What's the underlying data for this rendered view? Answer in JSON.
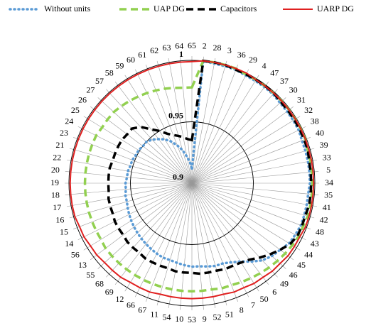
{
  "chart_data": {
    "type": "radar",
    "categories": [
      "65",
      "2",
      "28",
      "3",
      "36",
      "29",
      "4",
      "47",
      "37",
      "30",
      "31",
      "32",
      "38",
      "40",
      "39",
      "33",
      "5",
      "34",
      "35",
      "41",
      "42",
      "48",
      "43",
      "44",
      "45",
      "46",
      "49",
      "6",
      "50",
      "7",
      "8",
      "51",
      "52",
      "9",
      "53",
      "10",
      "54",
      "11",
      "67",
      "66",
      "12",
      "69",
      "68",
      "55",
      "13",
      "56",
      "14",
      "15",
      "16",
      "17",
      "18",
      "19",
      "20",
      "22",
      "21",
      "23",
      "24",
      "25",
      "26",
      "27",
      "57",
      "58",
      "59",
      "60",
      "61",
      "62",
      "63",
      "64"
    ],
    "rlim": [
      0.9,
      1.0
    ],
    "rticks": [
      0.9,
      0.95,
      1
    ],
    "grid": true,
    "legend": "top",
    "series": [
      {
        "name": "Without units",
        "color": "#5b9bd5",
        "dash": "dotted",
        "values": [
          0.912,
          1.0,
          0.999,
          0.999,
          0.999,
          0.998,
          0.998,
          0.998,
          0.998,
          0.997,
          0.997,
          0.997,
          0.997,
          0.996,
          0.996,
          0.996,
          0.996,
          0.996,
          0.995,
          0.995,
          0.995,
          0.995,
          0.994,
          0.993,
          0.99,
          0.988,
          0.985,
          0.98,
          0.975,
          0.972,
          0.97,
          0.97,
          0.969,
          0.968,
          0.968,
          0.967,
          0.966,
          0.965,
          0.965,
          0.964,
          0.963,
          0.962,
          0.961,
          0.96,
          0.959,
          0.958,
          0.957,
          0.956,
          0.955,
          0.955,
          0.954,
          0.954,
          0.953,
          0.953,
          0.952,
          0.952,
          0.951,
          0.951,
          0.95,
          0.95,
          0.948,
          0.945,
          0.942,
          0.938,
          0.933,
          0.928,
          0.922,
          0.917
        ]
      },
      {
        "name": "UAP DG",
        "color": "#92d050",
        "dash": "dashed",
        "values": [
          0.978,
          1.0,
          1.0,
          1.0,
          1.0,
          0.999,
          0.999,
          0.999,
          0.999,
          0.999,
          0.999,
          0.999,
          0.999,
          0.999,
          0.998,
          0.998,
          0.998,
          0.998,
          0.998,
          0.998,
          0.998,
          0.997,
          0.997,
          0.996,
          0.995,
          0.994,
          0.993,
          0.992,
          0.991,
          0.99,
          0.989,
          0.989,
          0.988,
          0.988,
          0.988,
          0.988,
          0.988,
          0.988,
          0.988,
          0.988,
          0.988,
          0.988,
          0.988,
          0.988,
          0.988,
          0.987,
          0.987,
          0.987,
          0.987,
          0.987,
          0.987,
          0.987,
          0.987,
          0.987,
          0.987,
          0.987,
          0.987,
          0.986,
          0.986,
          0.986,
          0.985,
          0.984,
          0.983,
          0.982,
          0.981,
          0.98,
          0.979,
          0.978
        ]
      },
      {
        "name": "Capacitors",
        "color": "#000000",
        "dash": "dashed",
        "values": [
          0.935,
          1.0,
          1.0,
          1.0,
          0.999,
          0.999,
          0.999,
          0.999,
          0.999,
          0.998,
          0.998,
          0.998,
          0.998,
          0.998,
          0.998,
          0.997,
          0.997,
          0.997,
          0.997,
          0.997,
          0.996,
          0.996,
          0.996,
          0.994,
          0.99,
          0.986,
          0.982,
          0.978,
          0.976,
          0.975,
          0.975,
          0.974,
          0.974,
          0.974,
          0.973,
          0.973,
          0.973,
          0.972,
          0.972,
          0.972,
          0.972,
          0.971,
          0.971,
          0.971,
          0.97,
          0.97,
          0.97,
          0.969,
          0.969,
          0.969,
          0.968,
          0.968,
          0.968,
          0.968,
          0.967,
          0.967,
          0.967,
          0.967,
          0.966,
          0.966,
          0.962,
          0.955,
          0.95,
          0.945,
          0.942,
          0.94,
          0.938,
          0.936
        ]
      },
      {
        "name": "UARP DG",
        "color": "#e02020",
        "dash": "solid",
        "values": [
          0.999,
          1.0,
          1.0,
          1.0,
          1.0,
          1.0,
          0.999,
          0.999,
          0.999,
          0.999,
          0.999,
          0.999,
          0.999,
          0.999,
          0.999,
          0.999,
          0.999,
          0.999,
          0.999,
          0.999,
          0.999,
          0.999,
          0.998,
          0.998,
          0.998,
          0.997,
          0.997,
          0.996,
          0.996,
          0.995,
          0.995,
          0.994,
          0.994,
          0.994,
          0.994,
          0.994,
          0.994,
          0.994,
          0.995,
          0.995,
          0.995,
          0.996,
          0.996,
          0.996,
          0.997,
          0.997,
          0.998,
          0.998,
          0.999,
          0.999,
          0.999,
          0.999,
          0.999,
          0.999,
          0.999,
          0.999,
          0.999,
          0.999,
          0.999,
          0.999,
          0.999,
          0.999,
          0.999,
          0.999,
          0.999,
          0.999,
          0.999,
          0.999
        ]
      }
    ]
  }
}
